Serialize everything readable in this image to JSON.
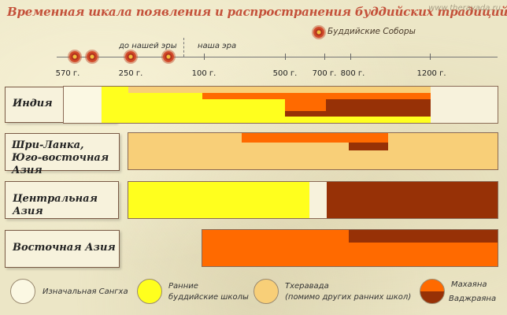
{
  "title": "Временная шкала появления и распространения буддийских традиций",
  "site": "www.theravada.ru",
  "council_legend": "Буддийские Соборы",
  "era": {
    "bce": "до нашей эры",
    "ce": "наша эра"
  },
  "ticks": [
    "570 г.",
    "250 г.",
    "100 г.",
    "500 г.",
    "700 г.",
    "800 г.",
    "1200 г."
  ],
  "regions": [
    {
      "name_line1": "Индия",
      "name_line2": ""
    },
    {
      "name_line1": "Шри-Ланка,",
      "name_line2": "Юго-восточная Азия"
    },
    {
      "name_line1": "Центральная Азия",
      "name_line2": ""
    },
    {
      "name_line1": "Восточная Азия",
      "name_line2": ""
    }
  ],
  "legend": {
    "original_sangha": "Изначальная Сангха",
    "early_schools_1": "Ранние",
    "early_schools_2": "буддийские школы",
    "theravada_1": "Тхеравада",
    "theravada_2": "(помимо других ранних школ)",
    "mahayana": "Махаяна",
    "vajrayana": "Ваджраяна"
  },
  "colors": {
    "original_sangha": "#fbf8e3",
    "early_schools": "#ffff1e",
    "theravada": "#f8cf78",
    "mahayana": "#ff6a00",
    "vajrayana": "#973106"
  }
}
